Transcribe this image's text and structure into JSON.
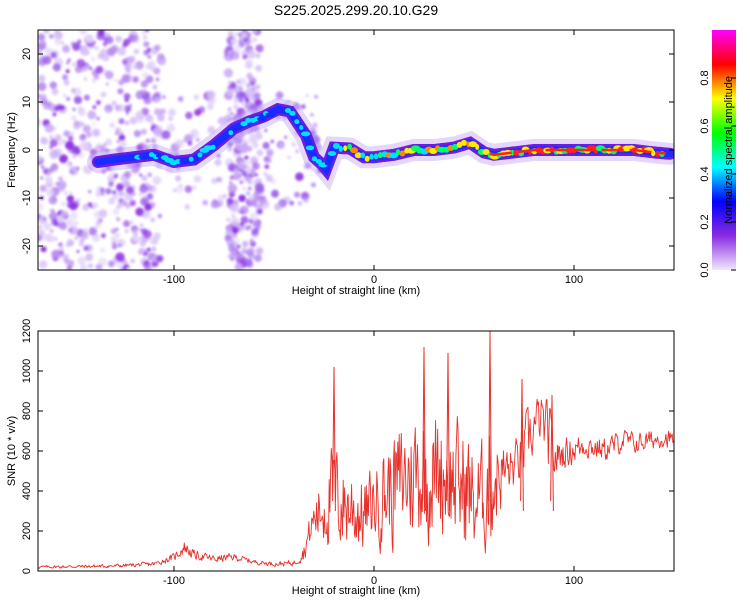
{
  "title": "S225.2025.299.20.10.G29",
  "chart_data": [
    {
      "type": "heatmap",
      "description_role": "spectrogram",
      "xlabel": "Height of straight line (km)",
      "ylabel": "Frequency (Hz)",
      "xlim": [
        -168,
        150
      ],
      "ylim": [
        -25,
        25
      ],
      "xticks": [
        -100,
        0,
        100
      ],
      "xtick_labels": [
        "-100",
        "0",
        "100"
      ],
      "yticks": [
        -20,
        -10,
        0,
        10,
        20
      ],
      "ytick_labels": [
        "-20",
        "-10",
        "0",
        "10",
        "20"
      ],
      "ridge": {
        "x": [
          -138,
          -130,
          -120,
          -110,
          -100,
          -90,
          -80,
          -70,
          -62,
          -55,
          -48,
          -42,
          -38,
          -34,
          -30,
          -26,
          -24,
          -20,
          -12,
          -5,
          0,
          10,
          20,
          30,
          40,
          48,
          55,
          60,
          70,
          80,
          90,
          100,
          110,
          120,
          130,
          140,
          148
        ],
        "y": [
          -2.5,
          -2,
          -1.5,
          -1,
          -2.5,
          -2,
          1,
          4.5,
          6,
          7,
          8.5,
          8,
          5.5,
          3,
          -1.5,
          -3,
          -4,
          0.5,
          0.3,
          -1.5,
          -1.5,
          -1,
          0,
          0,
          0.5,
          1.5,
          -0.5,
          -1,
          -0.5,
          0,
          0,
          0,
          0,
          0,
          0,
          -0.5,
          -0.8
        ]
      },
      "colorbar": {
        "label": "Normalized spectral amplitude",
        "range": [
          0,
          1
        ],
        "ticks": [
          0,
          0.2,
          0.4,
          0.6,
          0.8
        ],
        "tick_labels": [
          "0.0",
          "0.2",
          "0.4",
          "0.6",
          "0.8"
        ],
        "colors": [
          "#f0e8ff",
          "#8a2be2",
          "#0000ff",
          "#00ffff",
          "#00ff00",
          "#ffff00",
          "#ff0000",
          "#ff00ff"
        ]
      }
    },
    {
      "type": "line",
      "xlabel": "Height of straight line (km)",
      "ylabel": "SNR (10 * v/v)",
      "xlim": [
        -168,
        150
      ],
      "ylim": [
        0,
        1200
      ],
      "xticks": [
        -100,
        0,
        100
      ],
      "xtick_labels": [
        "-100",
        "0",
        "100"
      ],
      "yticks": [
        0,
        200,
        400,
        600,
        800,
        1000,
        1200
      ],
      "ytick_labels": [
        "0",
        "200",
        "400",
        "600",
        "800",
        "1000",
        "1200"
      ],
      "color": "#e8302a",
      "envelope": {
        "x": [
          -168,
          -130,
          -110,
          -100,
          -95,
          -90,
          -80,
          -70,
          -60,
          -50,
          -40,
          -35,
          -30,
          -25,
          -20,
          -15,
          -10,
          -5,
          0,
          5,
          10,
          15,
          20,
          25,
          30,
          35,
          40,
          45,
          50,
          55,
          58,
          62,
          65,
          70,
          75,
          78,
          82,
          85,
          88,
          90,
          95,
          100,
          105,
          110,
          115,
          120,
          125,
          130,
          135,
          140,
          145,
          150
        ],
        "base": [
          20,
          25,
          35,
          70,
          120,
          80,
          60,
          70,
          45,
          35,
          40,
          100,
          250,
          300,
          350,
          300,
          280,
          250,
          320,
          350,
          380,
          420,
          450,
          430,
          440,
          460,
          400,
          380,
          300,
          330,
          400,
          450,
          480,
          500,
          600,
          650,
          750,
          700,
          600,
          550,
          580,
          600,
          620,
          610,
          600,
          620,
          650,
          630,
          640,
          650,
          660,
          650
        ],
        "amp": [
          10,
          12,
          15,
          25,
          50,
          30,
          25,
          25,
          15,
          15,
          20,
          60,
          150,
          280,
          350,
          300,
          300,
          250,
          250,
          350,
          400,
          400,
          450,
          430,
          420,
          420,
          400,
          450,
          400,
          350,
          500,
          300,
          200,
          150,
          200,
          200,
          150,
          200,
          250,
          150,
          100,
          100,
          80,
          80,
          80,
          80,
          70,
          70,
          70,
          60,
          60,
          60
        ]
      },
      "peaks": [
        {
          "x": -20,
          "y": 1020
        },
        {
          "x": 25,
          "y": 1120
        },
        {
          "x": 37,
          "y": 1090
        },
        {
          "x": 58,
          "y": 1200
        },
        {
          "x": 74,
          "y": 960
        },
        {
          "x": 89,
          "y": 880
        }
      ]
    }
  ]
}
